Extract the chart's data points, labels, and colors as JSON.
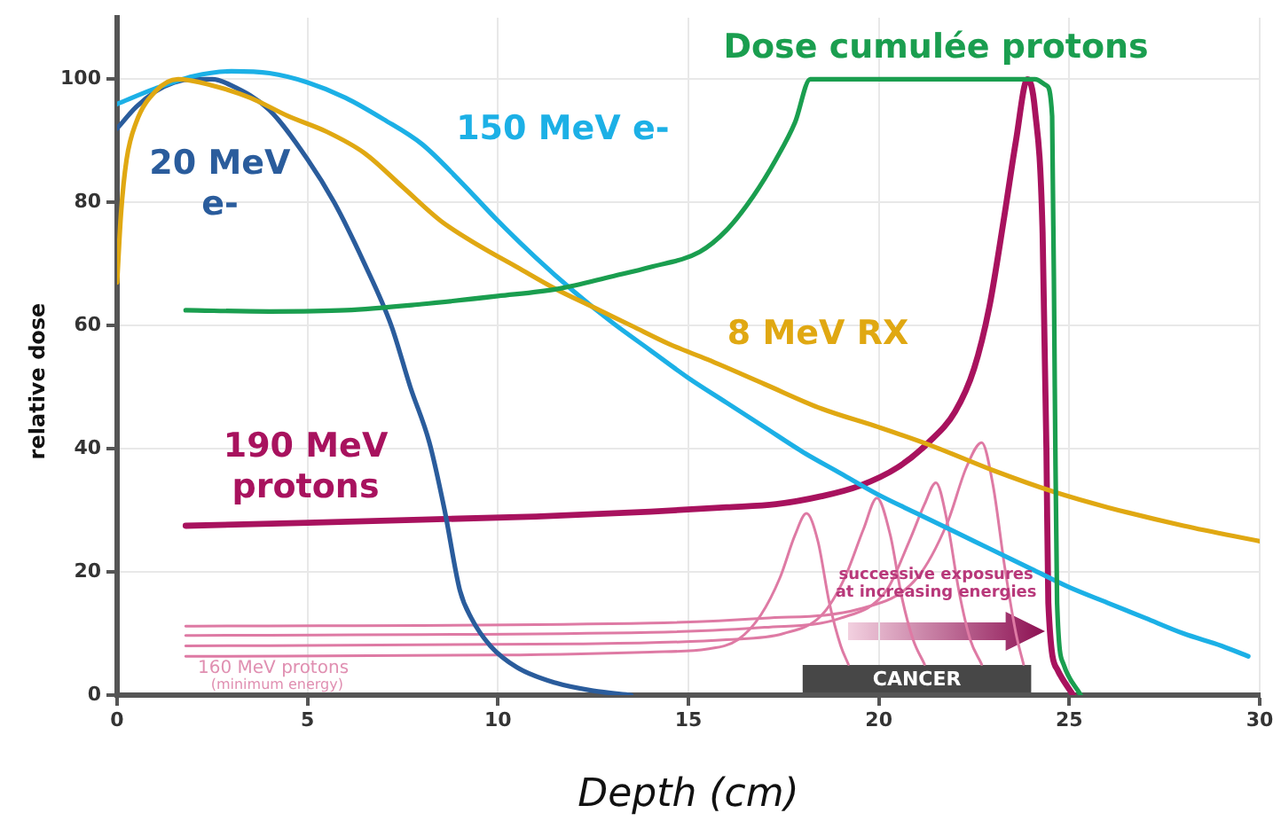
{
  "chart_data": {
    "type": "line",
    "xlabel": "Depth (cm)",
    "ylabel": "relative dose",
    "xlim": [
      0,
      30
    ],
    "xticks": [
      0,
      5,
      10,
      15,
      20,
      25,
      30
    ],
    "ylim": [
      0,
      110
    ],
    "yticks": [
      0,
      20,
      40,
      60,
      80,
      100
    ],
    "grid": true,
    "series": [
      {
        "name": "Dose cumulée protons",
        "color": "#1a9e4f",
        "x": [
          1.8,
          4,
          6,
          8,
          10,
          11.6,
          13,
          14,
          15.3,
          16,
          16.7,
          17.3,
          17.8,
          18.2,
          24.1,
          24.4,
          24.55,
          24.62,
          24.68,
          24.85,
          25.3
        ],
        "values": [
          62.5,
          62.3,
          62.5,
          63.5,
          64.8,
          66,
          68,
          69.5,
          72,
          75.5,
          81,
          87,
          93,
          100,
          100,
          99,
          94,
          50,
          15,
          5,
          0
        ]
      },
      {
        "name": "8 MeV RX",
        "color": "#e0a812",
        "x": [
          0,
          0.1,
          0.25,
          0.5,
          1,
          1.6,
          2.5,
          3.5,
          4.5,
          5.5,
          6.5,
          7.5,
          8.5,
          9.5,
          10.5,
          11.5,
          12.5,
          13.5,
          14.5,
          15.5,
          17,
          18.5,
          20,
          21.3,
          23,
          24.6,
          26,
          28,
          30
        ],
        "values": [
          67,
          78,
          87,
          93,
          98,
          100,
          99,
          97,
          94,
          91.5,
          88,
          82.5,
          77,
          73,
          69.5,
          66,
          63,
          60,
          57,
          54.5,
          50.5,
          46.5,
          43.5,
          40.7,
          36.5,
          33,
          30.5,
          27.5,
          25
        ]
      },
      {
        "name": "150 MeV e-",
        "color": "#1cb0e6",
        "x": [
          0,
          1,
          2,
          3,
          4,
          5,
          6,
          7,
          8,
          9,
          10,
          11,
          12,
          13,
          14,
          15,
          16,
          17,
          18,
          19,
          20,
          21,
          22,
          23,
          24,
          25,
          26,
          27,
          28,
          29,
          29.7
        ],
        "values": [
          96,
          98.5,
          100.5,
          101.3,
          101,
          99.5,
          97,
          93.5,
          89.5,
          83.5,
          77,
          71,
          65.5,
          60.5,
          56,
          51.5,
          47.5,
          43.5,
          39.5,
          36,
          32.5,
          29.5,
          26.5,
          23.5,
          20.5,
          17.5,
          15,
          12.5,
          10,
          8,
          6.3
        ]
      },
      {
        "name": "20 MeV e-",
        "color": "#2a5c9c",
        "x": [
          0,
          0.5,
          1,
          1.5,
          2,
          2.5,
          3,
          4,
          5,
          5.7,
          6.5,
          7.2,
          7.7,
          8.2,
          8.6,
          9,
          9.3,
          9.8,
          10.5,
          11.5,
          12.5,
          13.5
        ],
        "values": [
          92,
          95.5,
          98,
          99.5,
          100,
          100,
          99,
          95,
          87,
          80,
          70,
          60,
          50,
          41,
          30,
          17,
          12.5,
          8,
          4.5,
          2,
          0.7,
          0
        ]
      },
      {
        "name": "190 MeV protons",
        "color": "#a8125e",
        "x": [
          1.8,
          5,
          8,
          11,
          14,
          16,
          17.3,
          18.5,
          19.5,
          20.5,
          21.3,
          22,
          22.5,
          22.9,
          23.3,
          23.6,
          23.9,
          24.1,
          24.3,
          24.4,
          24.45,
          24.7,
          25.1
        ],
        "values": [
          27.5,
          28,
          28.5,
          29,
          29.8,
          30.5,
          31,
          32.3,
          34,
          37,
          41,
          46,
          53,
          63,
          78,
          90,
          100,
          95,
          75,
          40,
          15,
          4,
          0
        ]
      },
      {
        "color": "#de7aa4",
        "x": [
          1.8,
          10,
          14,
          15.5,
          16.3,
          16.9,
          17.4,
          17.8,
          18.1,
          18.4,
          18.7,
          19,
          19.2
        ],
        "values": [
          6.3,
          6.5,
          7,
          7.5,
          9,
          13,
          19,
          26,
          29.5,
          25,
          15,
          8,
          5
        ]
      },
      {
        "color": "#de7aa4",
        "x": [
          1.8,
          12,
          16,
          17.5,
          18.5,
          19.1,
          19.6,
          19.95,
          20.3,
          20.6,
          20.9,
          21.2
        ],
        "values": [
          8,
          8.3,
          9,
          10,
          13,
          19,
          27,
          32,
          26,
          16,
          9,
          5
        ]
      },
      {
        "color": "#de7aa4",
        "x": [
          1.8,
          14,
          17,
          19,
          20.2,
          20.8,
          21.2,
          21.5,
          21.8,
          22.1,
          22.4,
          22.7
        ],
        "values": [
          9.7,
          10.2,
          11,
          12.5,
          17,
          25,
          31,
          34.5,
          28,
          17,
          9,
          5
        ]
      },
      {
        "color": "#de7aa4",
        "x": [
          1.8,
          14,
          17,
          19.5,
          21,
          21.8,
          22.3,
          22.7,
          23,
          23.3,
          23.6,
          23.8
        ],
        "values": [
          11.2,
          11.7,
          12.5,
          14,
          19,
          28,
          37,
          41,
          34,
          21,
          10,
          5
        ]
      }
    ],
    "bands": [
      {
        "axis": "x",
        "from": 18,
        "to": 24,
        "label": "CANCER",
        "color": "#474747"
      }
    ],
    "annotations": [
      "160 MeV protons",
      "(minimum energy)",
      "successive exposures",
      "at increasing energies"
    ]
  }
}
